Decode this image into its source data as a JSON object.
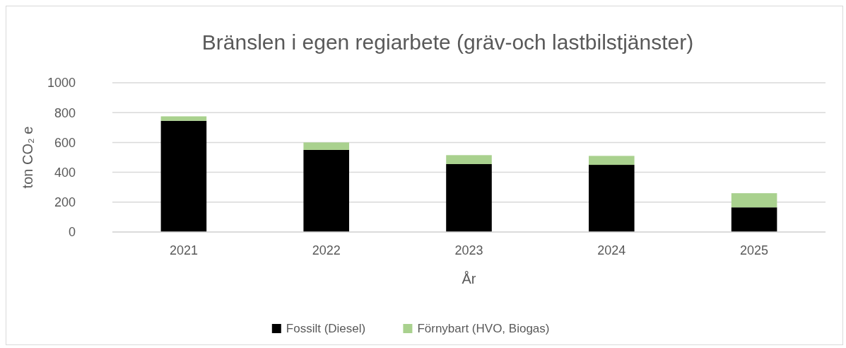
{
  "chart_data": {
    "type": "bar",
    "title": "Bränslen i egen regiarbete (gräv-och lastbilstjänster)",
    "xlabel": "År",
    "ylabel": "ton CO₂ e",
    "categories": [
      "2021",
      "2022",
      "2023",
      "2024",
      "2025"
    ],
    "stacked": true,
    "series": [
      {
        "name": "Fossilt (Diesel)",
        "color": "#000000",
        "values": [
          745,
          550,
          455,
          450,
          165
        ]
      },
      {
        "name": "Förnybart (HVO, Biogas)",
        "color": "#a9d18e",
        "values": [
          30,
          50,
          60,
          60,
          95
        ]
      }
    ],
    "ylim": [
      0,
      1000
    ],
    "yticks": [
      0,
      200,
      400,
      600,
      800,
      1000
    ],
    "grid": "y",
    "legend": "bottom"
  }
}
